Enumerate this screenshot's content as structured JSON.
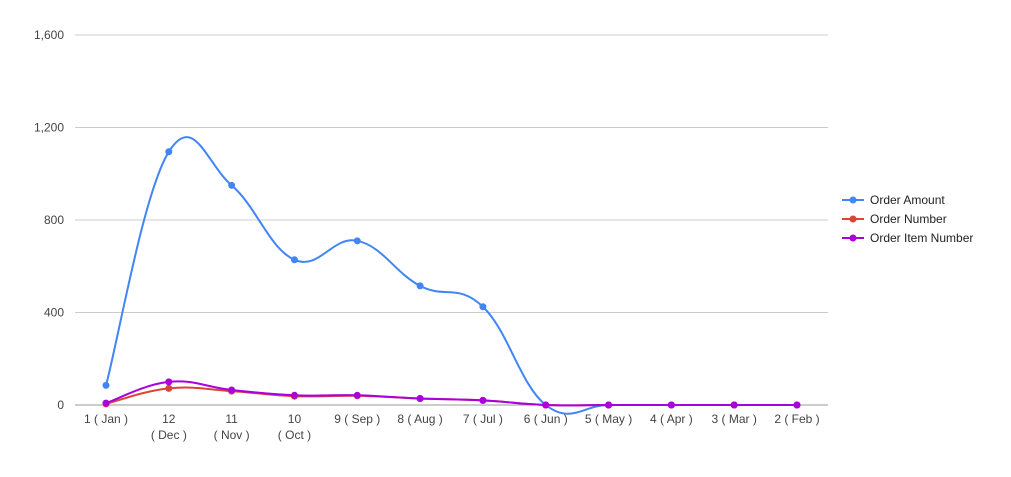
{
  "chart_data": {
    "type": "line",
    "categories": [
      [
        "1 ( Jan )"
      ],
      [
        "12",
        "( Dec )"
      ],
      [
        "11",
        "( Nov )"
      ],
      [
        "10",
        "( Oct )"
      ],
      [
        "9 ( Sep )"
      ],
      [
        "8 ( Aug )"
      ],
      [
        "7 ( Jul )"
      ],
      [
        "6 ( Jun )"
      ],
      [
        "5 ( May )"
      ],
      [
        "4 ( Apr )"
      ],
      [
        "3 ( Mar )"
      ],
      [
        "2 ( Feb )"
      ]
    ],
    "series": [
      {
        "name": "Order Amount",
        "color": "#4285f4",
        "values": [
          85,
          1095,
          950,
          628,
          710,
          515,
          425,
          0,
          0,
          0,
          0,
          0
        ]
      },
      {
        "name": "Order Number",
        "color": "#db4437",
        "values": [
          5,
          72,
          60,
          38,
          40,
          28,
          20,
          0,
          0,
          0,
          0,
          0
        ]
      },
      {
        "name": "Order Item Number",
        "color": "#aa00dd",
        "values": [
          8,
          100,
          65,
          42,
          42,
          28,
          20,
          0,
          0,
          0,
          0,
          0
        ]
      }
    ],
    "y_ticks": [
      "0",
      "400",
      "800",
      "1,200",
      "1,600"
    ],
    "ylim": [
      0,
      1600
    ],
    "grid": true,
    "legend_position": "right",
    "title": "",
    "xlabel": "",
    "ylabel": ""
  }
}
